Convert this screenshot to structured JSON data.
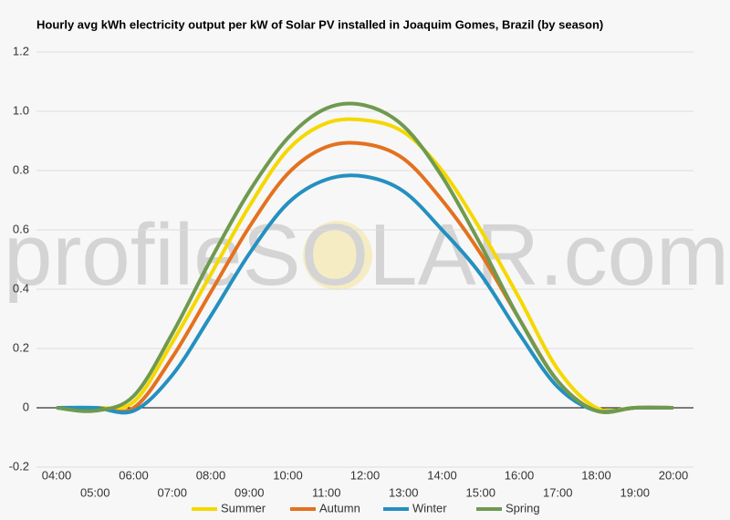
{
  "chart_data": {
    "type": "line",
    "title": "Hourly avg kWh electricity output per kW of Solar PV installed in Joaquim Gomes, Brazil (by season)",
    "watermark": "profileSOLAR.com",
    "categories": [
      "04:00",
      "05:00",
      "06:00",
      "07:00",
      "08:00",
      "09:00",
      "10:00",
      "11:00",
      "12:00",
      "13:00",
      "14:00",
      "15:00",
      "16:00",
      "17:00",
      "18:00",
      "19:00",
      "20:00"
    ],
    "series": [
      {
        "name": "Summer",
        "color": "#f5d800",
        "values": [
          0,
          0,
          0.02,
          0.22,
          0.45,
          0.68,
          0.87,
          0.96,
          0.97,
          0.93,
          0.8,
          0.6,
          0.37,
          0.13,
          0,
          0,
          0
        ]
      },
      {
        "name": "Autumn",
        "color": "#e4711f",
        "values": [
          0,
          0,
          0,
          0.17,
          0.39,
          0.61,
          0.79,
          0.88,
          0.89,
          0.84,
          0.7,
          0.52,
          0.3,
          0.09,
          -0.01,
          0,
          0
        ]
      },
      {
        "name": "Winter",
        "color": "#2490c0",
        "values": [
          0,
          0,
          -0.01,
          0.11,
          0.31,
          0.52,
          0.69,
          0.77,
          0.78,
          0.73,
          0.6,
          0.45,
          0.25,
          0.07,
          -0.01,
          0,
          0
        ]
      },
      {
        "name": "Spring",
        "color": "#6f9a4e",
        "values": [
          0,
          -0.01,
          0.04,
          0.25,
          0.5,
          0.73,
          0.91,
          1.01,
          1.02,
          0.95,
          0.78,
          0.55,
          0.3,
          0.09,
          -0.01,
          0,
          0
        ]
      }
    ],
    "ylim": [
      -0.2,
      1.2
    ],
    "yticks": [
      -0.2,
      0,
      0.2,
      0.4,
      0.6,
      0.8,
      {
        "value": 1,
        "label": "1.0"
      },
      1.2
    ],
    "grid": true
  }
}
